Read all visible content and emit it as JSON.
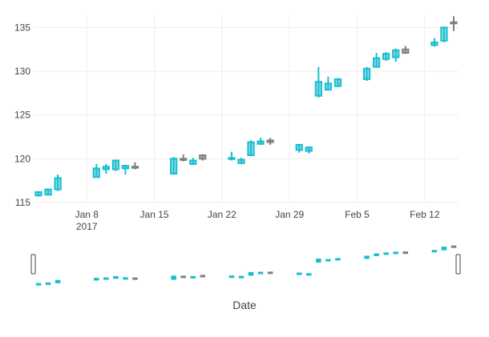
{
  "chart_data": {
    "type": "candlestick",
    "title": "",
    "xlabel": "Date",
    "ylabel": "",
    "ylim": [
      115,
      136.5
    ],
    "yticks": [
      115,
      120,
      125,
      130,
      135
    ],
    "xlim": [
      "2017-01-03",
      "2017-02-15"
    ],
    "xticks": [
      {
        "date": "2017-01-08",
        "label": "Jan 8",
        "sublabel": "2017"
      },
      {
        "date": "2017-01-15",
        "label": "Jan 15",
        "sublabel": ""
      },
      {
        "date": "2017-01-22",
        "label": "Jan 22",
        "sublabel": ""
      },
      {
        "date": "2017-01-29",
        "label": "Jan 29",
        "sublabel": ""
      },
      {
        "date": "2017-02-05",
        "label": "Feb 5",
        "sublabel": ""
      },
      {
        "date": "2017-02-12",
        "label": "Feb 12",
        "sublabel": ""
      }
    ],
    "increasing_color": "#17becf",
    "decreasing_color": "#7f7f7f",
    "rangeslider": true,
    "candles": [
      {
        "date": "2017-01-03",
        "open": 115.8,
        "high": 116.3,
        "low": 115.7,
        "close": 116.2
      },
      {
        "date": "2017-01-04",
        "open": 115.9,
        "high": 116.5,
        "low": 115.8,
        "close": 116.5
      },
      {
        "date": "2017-01-05",
        "open": 116.5,
        "high": 118.2,
        "low": 116.3,
        "close": 117.8
      },
      {
        "date": "2017-01-09",
        "open": 117.9,
        "high": 119.4,
        "low": 117.9,
        "close": 118.9
      },
      {
        "date": "2017-01-10",
        "open": 118.8,
        "high": 119.4,
        "low": 118.3,
        "close": 119.1
      },
      {
        "date": "2017-01-11",
        "open": 118.8,
        "high": 119.9,
        "low": 118.6,
        "close": 119.8
      },
      {
        "date": "2017-01-12",
        "open": 118.9,
        "high": 119.3,
        "low": 118.2,
        "close": 119.2
      },
      {
        "date": "2017-01-13",
        "open": 119.1,
        "high": 119.6,
        "low": 118.8,
        "close": 119.0
      },
      {
        "date": "2017-01-17",
        "open": 118.3,
        "high": 120.2,
        "low": 118.2,
        "close": 120.0
      },
      {
        "date": "2017-01-18",
        "open": 120.0,
        "high": 120.5,
        "low": 119.7,
        "close": 119.9
      },
      {
        "date": "2017-01-19",
        "open": 119.4,
        "high": 120.1,
        "low": 119.4,
        "close": 119.8
      },
      {
        "date": "2017-01-20",
        "open": 120.4,
        "high": 120.5,
        "low": 119.8,
        "close": 120.0
      },
      {
        "date": "2017-01-23",
        "open": 120.0,
        "high": 120.8,
        "low": 119.8,
        "close": 120.1
      },
      {
        "date": "2017-01-24",
        "open": 119.5,
        "high": 120.1,
        "low": 119.4,
        "close": 119.9
      },
      {
        "date": "2017-01-25",
        "open": 120.4,
        "high": 122.1,
        "low": 120.3,
        "close": 121.9
      },
      {
        "date": "2017-01-26",
        "open": 121.7,
        "high": 122.4,
        "low": 121.6,
        "close": 122.0
      },
      {
        "date": "2017-01-27",
        "open": 122.1,
        "high": 122.4,
        "low": 121.6,
        "close": 121.9
      },
      {
        "date": "2017-01-30",
        "open": 121.0,
        "high": 121.6,
        "low": 120.7,
        "close": 121.6
      },
      {
        "date": "2017-01-31",
        "open": 120.9,
        "high": 121.4,
        "low": 120.6,
        "close": 121.3
      },
      {
        "date": "2017-02-01",
        "open": 127.2,
        "high": 130.5,
        "low": 127.0,
        "close": 128.8
      },
      {
        "date": "2017-02-02",
        "open": 127.9,
        "high": 129.4,
        "low": 127.8,
        "close": 128.6
      },
      {
        "date": "2017-02-03",
        "open": 128.3,
        "high": 129.2,
        "low": 128.2,
        "close": 129.1
      },
      {
        "date": "2017-02-06",
        "open": 129.1,
        "high": 130.5,
        "low": 128.9,
        "close": 130.3
      },
      {
        "date": "2017-02-07",
        "open": 130.5,
        "high": 132.1,
        "low": 130.4,
        "close": 131.5
      },
      {
        "date": "2017-02-08",
        "open": 131.4,
        "high": 132.2,
        "low": 131.2,
        "close": 132.0
      },
      {
        "date": "2017-02-09",
        "open": 131.6,
        "high": 132.6,
        "low": 131.1,
        "close": 132.4
      },
      {
        "date": "2017-02-10",
        "open": 132.5,
        "high": 132.9,
        "low": 132.0,
        "close": 132.1
      },
      {
        "date": "2017-02-13",
        "open": 133.0,
        "high": 133.8,
        "low": 132.8,
        "close": 133.3
      },
      {
        "date": "2017-02-14",
        "open": 133.5,
        "high": 135.1,
        "low": 133.3,
        "close": 135.0
      },
      {
        "date": "2017-02-15",
        "open": 135.6,
        "high": 136.3,
        "low": 134.6,
        "close": 135.5
      }
    ]
  }
}
